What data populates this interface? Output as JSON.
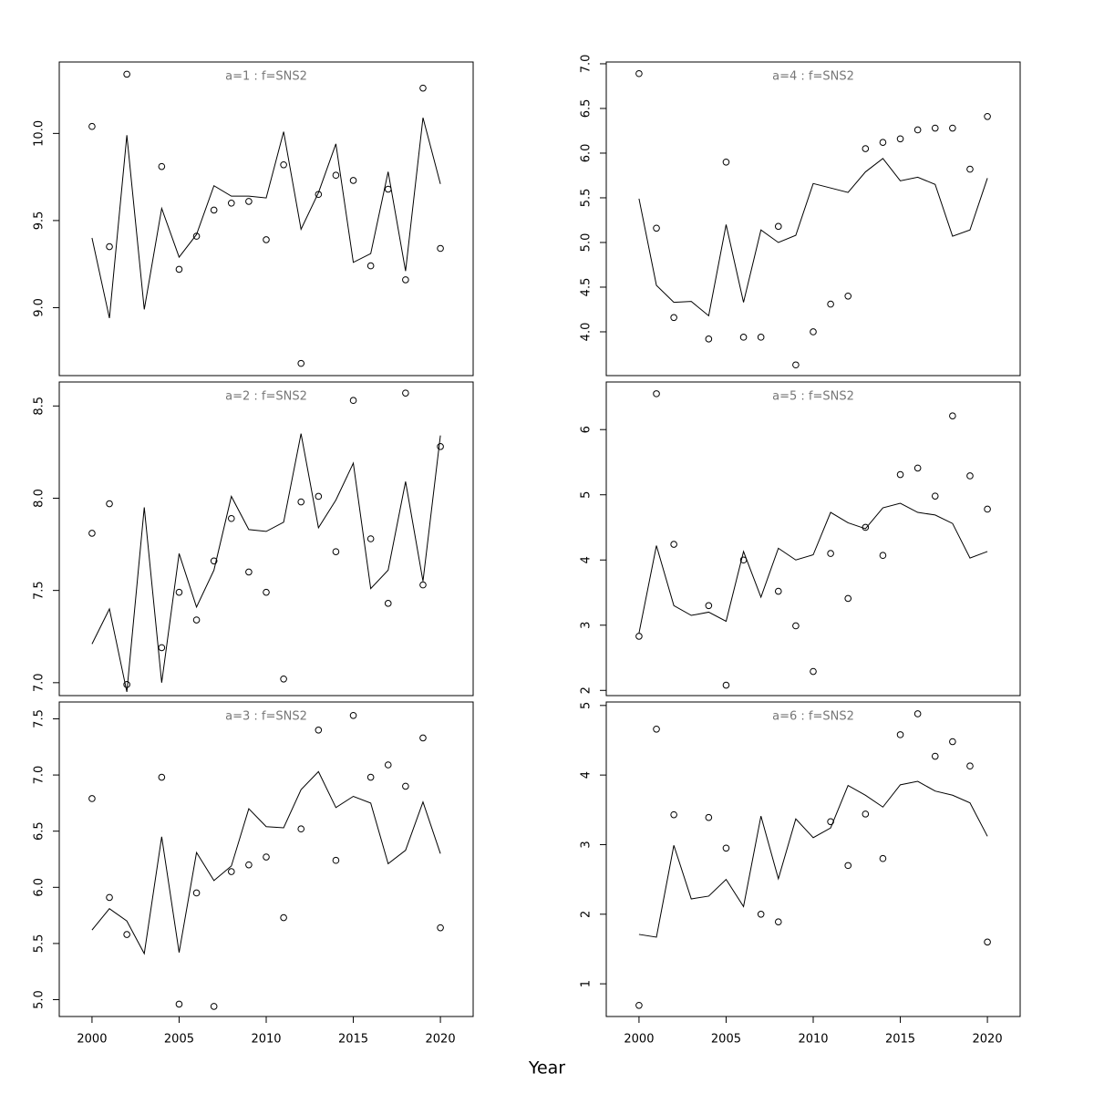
{
  "xlabel": "Year",
  "chart_data": [
    {
      "type": "line",
      "title": "a=1 : f=SNS2",
      "x": [
        2000,
        2001,
        2002,
        2003,
        2004,
        2005,
        2006,
        2007,
        2008,
        2009,
        2010,
        2011,
        2012,
        2013,
        2014,
        2015,
        2016,
        2017,
        2018,
        2019,
        2020
      ],
      "series": [
        {
          "style": "line",
          "color": "#000000",
          "values": [
            9.4,
            8.94,
            9.99,
            8.99,
            9.57,
            9.29,
            9.42,
            9.7,
            9.64,
            9.64,
            9.63,
            10.01,
            9.45,
            9.66,
            9.94,
            9.26,
            9.31,
            9.78,
            9.21,
            10.09,
            9.71
          ]
        },
        {
          "style": "points",
          "color": "#000000",
          "values": [
            10.04,
            9.35,
            10.34,
            null,
            9.81,
            9.22,
            9.41,
            9.56,
            9.6,
            9.61,
            9.39,
            9.82,
            8.68,
            9.65,
            9.76,
            9.73,
            9.24,
            9.68,
            9.16,
            10.26,
            9.34
          ]
        }
      ],
      "xlim": [
        1998.12,
        2021.88
      ],
      "ylim": [
        8.61,
        10.41
      ],
      "yticks": [
        {
          "value": 9.0,
          "label": "9.0"
        },
        9.5,
        {
          "value": 10.0,
          "label": "10.0"
        }
      ]
    },
    {
      "type": "line",
      "title": "a=2 : f=SNS2",
      "x": [
        2000,
        2001,
        2002,
        2003,
        2004,
        2005,
        2006,
        2007,
        2008,
        2009,
        2010,
        2011,
        2012,
        2013,
        2014,
        2015,
        2016,
        2017,
        2018,
        2019,
        2020
      ],
      "series": [
        {
          "style": "line",
          "color": "#000000",
          "values": [
            7.21,
            7.4,
            6.95,
            7.95,
            7.0,
            7.7,
            7.41,
            7.61,
            8.01,
            7.83,
            7.82,
            7.87,
            8.35,
            7.84,
            7.99,
            8.19,
            7.51,
            7.61,
            8.09,
            7.55,
            8.34
          ]
        },
        {
          "style": "points",
          "color": "#000000",
          "values": [
            7.81,
            7.97,
            6.99,
            null,
            7.19,
            7.49,
            7.34,
            7.66,
            7.89,
            7.6,
            7.49,
            7.02,
            7.98,
            8.01,
            7.71,
            8.53,
            7.78,
            7.43,
            8.57,
            7.53,
            8.28
          ]
        }
      ],
      "xlim": [
        1998.12,
        2021.88
      ],
      "ylim": [
        6.93,
        8.63
      ],
      "yticks": [
        {
          "value": 7.0,
          "label": "7.0"
        },
        7.5,
        {
          "value": 8.0,
          "label": "8.0"
        },
        8.5
      ]
    },
    {
      "type": "line",
      "title": "a=3 : f=SNS2",
      "x": [
        2000,
        2001,
        2002,
        2003,
        2004,
        2005,
        2006,
        2007,
        2008,
        2009,
        2010,
        2011,
        2012,
        2013,
        2014,
        2015,
        2016,
        2017,
        2018,
        2019,
        2020
      ],
      "series": [
        {
          "style": "line",
          "color": "#000000",
          "values": [
            5.62,
            5.81,
            5.7,
            5.41,
            6.45,
            5.42,
            6.31,
            6.06,
            6.19,
            6.7,
            6.54,
            6.53,
            6.87,
            7.03,
            6.71,
            6.81,
            6.75,
            6.21,
            6.33,
            6.76,
            6.3
          ]
        },
        {
          "style": "points",
          "color": "#000000",
          "values": [
            6.79,
            5.91,
            5.58,
            null,
            6.98,
            4.96,
            5.95,
            4.94,
            6.14,
            6.2,
            6.27,
            5.73,
            6.52,
            7.4,
            6.24,
            7.53,
            6.98,
            7.09,
            6.9,
            7.33,
            5.64
          ]
        }
      ],
      "xlim": [
        1998.12,
        2021.88
      ],
      "ylim": [
        4.85,
        7.65
      ],
      "xticks": [
        2000,
        2005,
        2010,
        2015,
        2020
      ],
      "yticks": [
        {
          "value": 5.0,
          "label": "5.0"
        },
        5.5,
        {
          "value": 6.0,
          "label": "6.0"
        },
        6.5,
        {
          "value": 7.0,
          "label": "7.0"
        },
        7.5
      ]
    },
    {
      "type": "line",
      "title": "a=4 : f=SNS2",
      "x": [
        2000,
        2001,
        2002,
        2003,
        2004,
        2005,
        2006,
        2007,
        2008,
        2009,
        2010,
        2011,
        2012,
        2013,
        2014,
        2015,
        2016,
        2017,
        2018,
        2019,
        2020
      ],
      "series": [
        {
          "style": "line",
          "color": "#000000",
          "values": [
            5.49,
            4.52,
            4.33,
            4.34,
            4.18,
            5.2,
            4.33,
            5.14,
            5.0,
            5.08,
            5.66,
            5.61,
            5.56,
            5.79,
            5.94,
            5.69,
            5.73,
            5.65,
            5.07,
            5.14,
            5.72
          ]
        },
        {
          "style": "points",
          "color": "#000000",
          "values": [
            6.89,
            5.16,
            4.16,
            null,
            3.92,
            5.9,
            3.94,
            3.94,
            5.18,
            3.63,
            4.0,
            4.31,
            4.4,
            6.05,
            6.12,
            6.16,
            6.26,
            6.28,
            6.28,
            5.82,
            6.41
          ]
        }
      ],
      "xlim": [
        1998.12,
        2021.88
      ],
      "ylim": [
        3.51,
        7.02
      ],
      "yticks": [
        {
          "value": 4.0,
          "label": "4.0"
        },
        4.5,
        {
          "value": 5.0,
          "label": "5.0"
        },
        5.5,
        {
          "value": 6.0,
          "label": "6.0"
        },
        6.5,
        {
          "value": 7.0,
          "label": "7.0"
        }
      ]
    },
    {
      "type": "line",
      "title": "a=5 : f=SNS2",
      "x": [
        2000,
        2001,
        2002,
        2003,
        2004,
        2005,
        2006,
        2007,
        2008,
        2009,
        2010,
        2011,
        2012,
        2013,
        2014,
        2015,
        2016,
        2017,
        2018,
        2019,
        2020
      ],
      "series": [
        {
          "style": "line",
          "color": "#000000",
          "values": [
            2.88,
            4.22,
            3.3,
            3.15,
            3.2,
            3.06,
            4.13,
            3.43,
            4.18,
            4.0,
            4.08,
            4.73,
            4.57,
            4.48,
            4.8,
            4.87,
            4.73,
            4.69,
            4.56,
            4.03,
            4.13
          ]
        },
        {
          "style": "points",
          "color": "#000000",
          "values": [
            2.83,
            6.55,
            4.24,
            null,
            3.3,
            2.08,
            4.0,
            null,
            3.52,
            2.99,
            2.29,
            4.1,
            3.41,
            4.5,
            4.07,
            5.31,
            5.41,
            4.98,
            6.21,
            5.29,
            4.78
          ]
        }
      ],
      "xlim": [
        1998.12,
        2021.88
      ],
      "ylim": [
        1.92,
        6.73
      ],
      "yticks": [
        2,
        3,
        4,
        5,
        6
      ]
    },
    {
      "type": "line",
      "title": "a=6 : f=SNS2",
      "x": [
        2000,
        2001,
        2002,
        2003,
        2004,
        2005,
        2006,
        2007,
        2008,
        2009,
        2010,
        2011,
        2012,
        2013,
        2014,
        2015,
        2016,
        2017,
        2018,
        2019,
        2020
      ],
      "series": [
        {
          "style": "line",
          "color": "#000000",
          "values": [
            1.71,
            1.67,
            2.99,
            2.22,
            2.26,
            2.5,
            2.11,
            3.41,
            2.51,
            3.37,
            3.1,
            3.24,
            3.85,
            3.71,
            3.54,
            3.86,
            3.91,
            3.77,
            3.71,
            3.6,
            3.12
          ]
        },
        {
          "style": "points",
          "color": "#000000",
          "values": [
            0.69,
            4.66,
            3.43,
            null,
            3.39,
            2.95,
            null,
            2.0,
            1.89,
            null,
            null,
            3.33,
            2.7,
            3.44,
            2.8,
            4.58,
            4.88,
            4.27,
            4.48,
            4.13,
            1.6
          ]
        }
      ],
      "xlim": [
        1998.12,
        2021.88
      ],
      "ylim": [
        0.53,
        5.05
      ],
      "xticks": [
        2000,
        2005,
        2010,
        2015,
        2020
      ],
      "yticks": [
        1,
        2,
        3,
        4,
        5
      ]
    }
  ]
}
